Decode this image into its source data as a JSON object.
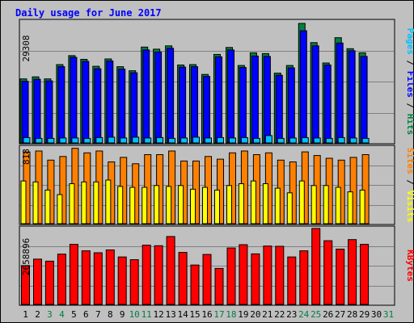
{
  "title": "Daily usage for June 2017",
  "colors": {
    "background": "#c0c0c0",
    "panel": "#c0c0c0",
    "title": "#0000ff",
    "hits": "#008040",
    "files": "#0000ff",
    "pages": "#00c0ff",
    "visits": "#ffff00",
    "sites": "#ff8000",
    "kbytes": "#ff0000",
    "weekend_day": "#008040",
    "weekday": "#000000",
    "grid": "#808080"
  },
  "chart_data": [
    {
      "type": "bar",
      "panel": "hits-files-pages",
      "max_label": "29308",
      "ymax": 29308,
      "legend": [
        {
          "name": "Pages",
          "key": "pages"
        },
        {
          "name": "Files",
          "key": "files"
        },
        {
          "name": "Hits",
          "key": "hits"
        }
      ],
      "series": [
        {
          "name": "Hits",
          "key": "hits",
          "values": [
            15700,
            16200,
            15700,
            19200,
            21400,
            20500,
            18800,
            20600,
            18700,
            17700,
            23500,
            23000,
            23800,
            19100,
            19200,
            16800,
            21700,
            23400,
            19000,
            22100,
            21900,
            17100,
            19000,
            29300,
            24600,
            19600,
            25800,
            23100,
            22100,
            null
          ]
        },
        {
          "name": "Files",
          "key": "files",
          "values": [
            15100,
            15600,
            15200,
            18700,
            21000,
            20000,
            18200,
            20100,
            18100,
            17200,
            22800,
            22300,
            23200,
            18600,
            18700,
            16300,
            21100,
            22800,
            18500,
            21300,
            21200,
            16600,
            18400,
            27500,
            23800,
            19100,
            24500,
            22600,
            21200,
            null
          ]
        },
        {
          "name": "Pages",
          "key": "pages",
          "values": [
            1300,
            1100,
            1100,
            1200,
            1200,
            1100,
            1300,
            1400,
            1200,
            1400,
            1200,
            1300,
            1100,
            1200,
            1400,
            1200,
            1300,
            1200,
            1300,
            1100,
            1800,
            1100,
            1200,
            1300,
            1200,
            1100,
            1300,
            1200,
            1100,
            null
          ]
        }
      ]
    },
    {
      "type": "bar",
      "panel": "visits-sites",
      "max_label": "818",
      "ymax": 818,
      "legend": [
        {
          "name": "Sites",
          "key": "sites"
        },
        {
          "name": "Visits",
          "key": "visits"
        }
      ],
      "series": [
        {
          "name": "Visits",
          "key": "visits",
          "values": [
            470,
            460,
            370,
            320,
            440,
            460,
            460,
            480,
            410,
            400,
            400,
            420,
            410,
            420,
            380,
            400,
            370,
            420,
            440,
            470,
            440,
            390,
            340,
            470,
            420,
            420,
            400,
            350,
            370,
            null
          ]
        },
        {
          "name": "Sites",
          "key": "sites",
          "values": [
            790,
            800,
            700,
            740,
            830,
            780,
            800,
            680,
            730,
            660,
            760,
            760,
            800,
            690,
            690,
            740,
            710,
            780,
            800,
            760,
            780,
            700,
            680,
            790,
            750,
            720,
            700,
            730,
            760,
            null
          ]
        }
      ]
    },
    {
      "type": "bar",
      "panel": "kbytes",
      "max_label": "2658896",
      "ymax": 2658896,
      "legend": [
        {
          "name": "KBytes",
          "key": "kbytes"
        }
      ],
      "series": [
        {
          "name": "KBytes",
          "key": "kbytes",
          "values": [
            1390000,
            1620000,
            1550000,
            1800000,
            2150000,
            1920000,
            1850000,
            1950000,
            1700000,
            1600000,
            2120000,
            2100000,
            2430000,
            1860000,
            1410000,
            1790000,
            1290000,
            2020000,
            2140000,
            1810000,
            2090000,
            2080000,
            1700000,
            1920000,
            2720000,
            2280000,
            1980000,
            2320000,
            2150000,
            null
          ]
        }
      ]
    }
  ],
  "days": [
    {
      "label": "1",
      "weekend": false
    },
    {
      "label": "2",
      "weekend": false
    },
    {
      "label": "3",
      "weekend": true
    },
    {
      "label": "4",
      "weekend": true
    },
    {
      "label": "5",
      "weekend": false
    },
    {
      "label": "6",
      "weekend": false
    },
    {
      "label": "7",
      "weekend": false
    },
    {
      "label": "8",
      "weekend": false
    },
    {
      "label": "9",
      "weekend": false
    },
    {
      "label": "10",
      "weekend": true
    },
    {
      "label": "11",
      "weekend": true
    },
    {
      "label": "12",
      "weekend": false
    },
    {
      "label": "13",
      "weekend": false
    },
    {
      "label": "14",
      "weekend": false
    },
    {
      "label": "15",
      "weekend": false
    },
    {
      "label": "16",
      "weekend": false
    },
    {
      "label": "17",
      "weekend": true
    },
    {
      "label": "18",
      "weekend": true
    },
    {
      "label": "19",
      "weekend": false
    },
    {
      "label": "20",
      "weekend": false
    },
    {
      "label": "21",
      "weekend": false
    },
    {
      "label": "22",
      "weekend": false
    },
    {
      "label": "23",
      "weekend": false
    },
    {
      "label": "24",
      "weekend": true
    },
    {
      "label": "25",
      "weekend": true
    },
    {
      "label": "26",
      "weekend": false
    },
    {
      "label": "27",
      "weekend": false
    },
    {
      "label": "28",
      "weekend": false
    },
    {
      "label": "29",
      "weekend": false
    },
    {
      "label": "30",
      "weekend": false
    },
    {
      "label": "31",
      "weekend": true
    }
  ]
}
